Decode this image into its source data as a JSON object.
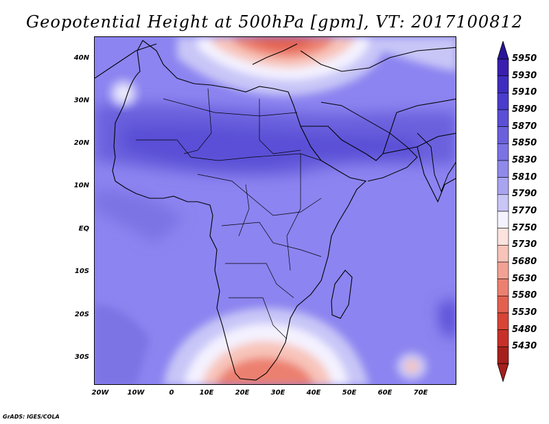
{
  "title": "Geopotential Height at 500hPa [gpm], VT: 2017100812",
  "lat_labels": [
    "40N",
    "30N",
    "20N",
    "10N",
    "EQ",
    "10S",
    "20S",
    "30S"
  ],
  "lon_labels": [
    "20W",
    "10W",
    "0",
    "10E",
    "20E",
    "30E",
    "40E",
    "50E",
    "60E",
    "70E"
  ],
  "colorbar": {
    "levels": [
      "5950",
      "5930",
      "5910",
      "5890",
      "5870",
      "5850",
      "5830",
      "5810",
      "5790",
      "5770",
      "5750",
      "5730",
      "5680",
      "5630",
      "5580",
      "5530",
      "5480",
      "5430"
    ],
    "colors": [
      "#3a1fb0",
      "#3f2dbf",
      "#4a3ccc",
      "#5a4fd6",
      "#6a60dd",
      "#7b73e4",
      "#8f89ea",
      "#a8a4f0",
      "#c8c6f7",
      "#f4f2ff",
      "#fde3de",
      "#f8c4ba",
      "#f2a294",
      "#ec8070",
      "#e3604f",
      "#d84436",
      "#c73028",
      "#a5201c"
    ]
  },
  "credit": "GrADS: IGES/COLA"
}
